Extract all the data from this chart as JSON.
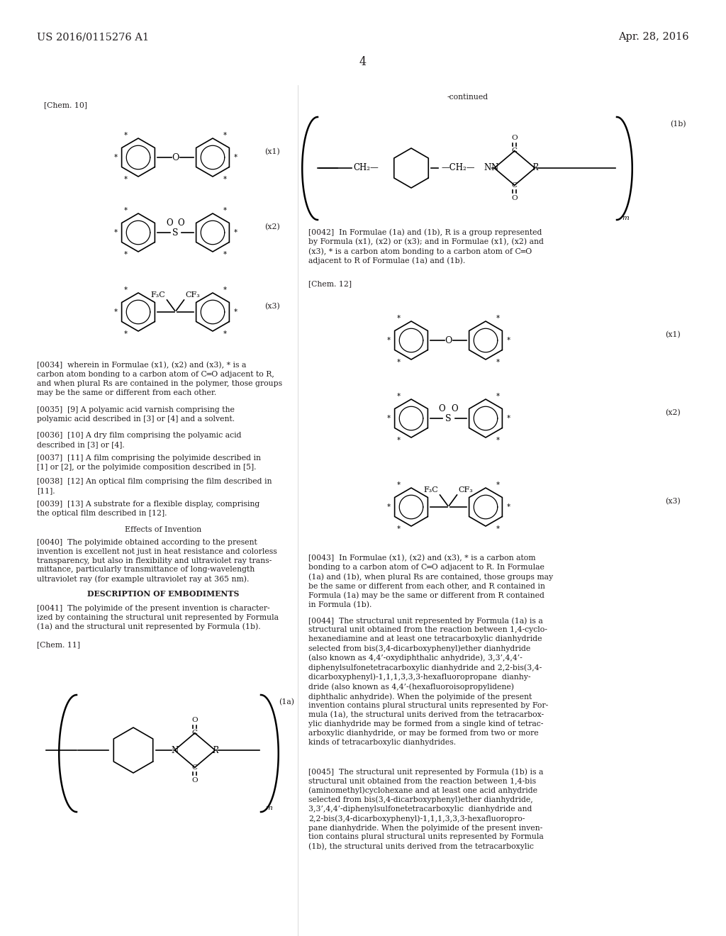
{
  "title_left": "US 2016/0115276 A1",
  "title_right": "Apr. 28, 2016",
  "page_number": "4",
  "background_color": "#ffffff",
  "text_color": "#231f20",
  "font_size_header": 10.5,
  "font_size_body": 7.8,
  "font_size_label": 7.8,
  "continued_label": "-continued",
  "chem10_label": "[Chem. 10]",
  "chem11_label": "[Chem. 11]",
  "chem12_label": "[Chem. 12]",
  "label_x1": "(x1)",
  "label_x2": "(x2)",
  "label_x3": "(x3)",
  "label_1a": "(1a)",
  "label_1b": "(1b)"
}
